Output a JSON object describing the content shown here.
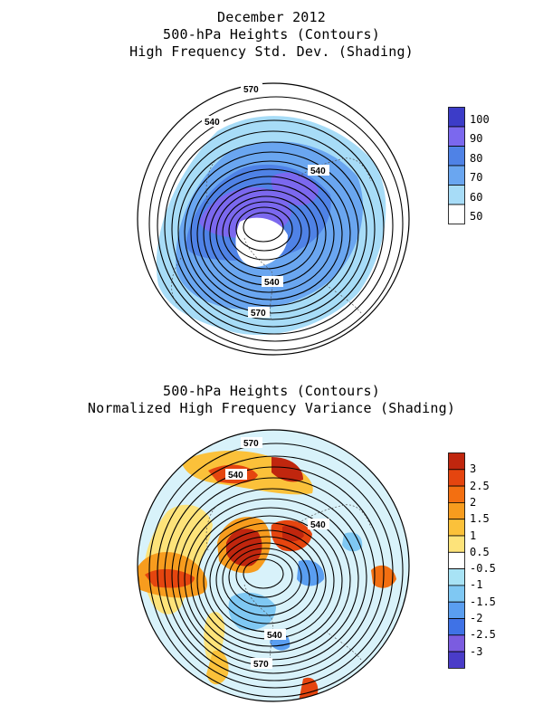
{
  "top_panel": {
    "title_lines": [
      "December 2012",
      "500-hPa Heights (Contours)",
      "High Frequency Std. Dev. (Shading)"
    ],
    "contour_labels": [
      "570",
      "540",
      "540",
      "540",
      "570"
    ],
    "legend": {
      "labels": [
        "100",
        "90",
        "80",
        "70",
        "60",
        "50"
      ],
      "colors": [
        "#3c3cc8",
        "#7b68ee",
        "#4f82e6",
        "#6aa6f0",
        "#a7dcf7",
        "#ffffff"
      ]
    }
  },
  "bottom_panel": {
    "title_lines": [
      "500-hPa Heights (Contours)",
      "Normalized High Frequency Variance (Shading)"
    ],
    "contour_labels": [
      "570",
      "540",
      "540",
      "540",
      "570"
    ],
    "legend": {
      "labels": [
        "3",
        "2.5",
        "2",
        "1.5",
        "1",
        "0.5",
        "-0.5",
        "-1",
        "-1.5",
        "-2",
        "-2.5",
        "-3"
      ],
      "colors": [
        "#c0260e",
        "#e5450f",
        "#f36f11",
        "#f79c1e",
        "#fbc13a",
        "#fde37a",
        "#ffffff",
        "#a8e3f5",
        "#7fc8f3",
        "#5a9ef0",
        "#3f72e6",
        "#7b5ce0",
        "#4a3cc8"
      ]
    }
  }
}
